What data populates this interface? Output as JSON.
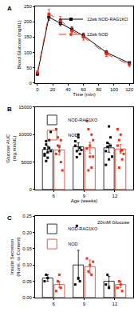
{
  "chart_data": [
    {
      "type": "line",
      "label": "A",
      "x_label": "Time (min)",
      "y_label": "Blood Glucose (mg/dL)",
      "x": [
        0,
        15,
        30,
        45,
        60,
        90,
        120
      ],
      "xlim": [
        -3,
        125
      ],
      "xticks": [
        0,
        20,
        40,
        60,
        80,
        100,
        120
      ],
      "ylim": [
        0,
        250
      ],
      "yticks": [
        0,
        50,
        100,
        150,
        200,
        250
      ],
      "grid": false,
      "legend": "upper right",
      "series": [
        {
          "name": "12wk NOD-RAG1KO",
          "color": "#000000",
          "marker": "square",
          "line_style": "solid",
          "values": [
            30,
            215,
            195,
            175,
            155,
            100,
            65
          ],
          "error": [
            5,
            10,
            8,
            8,
            8,
            6,
            5
          ]
        },
        {
          "name": "12wk NOD",
          "color": "#e8301c",
          "marker": "circle",
          "line_style": "dash",
          "values": [
            35,
            225,
            205,
            170,
            150,
            95,
            60
          ],
          "error": [
            5,
            15,
            12,
            10,
            10,
            8,
            6
          ]
        }
      ]
    },
    {
      "type": "bar",
      "label": "B",
      "x_label": "Age (weeks)",
      "y_label": "Glucose AUC (mg.min/dL)",
      "categories": [
        "6",
        "9",
        "12"
      ],
      "ylim": [
        0,
        15000
      ],
      "yticks": [
        0,
        5000,
        10000,
        15000
      ],
      "grid": false,
      "legend": "upper left",
      "series": [
        {
          "name": "NOD-RAG1KO",
          "color": "#000000",
          "marker": "square",
          "values": [
            7300,
            7800,
            7600
          ],
          "error": [
            600,
            700,
            800
          ],
          "points": [
            [
              7500,
              8200,
              6800,
              9000,
              7000,
              6200,
              8800,
              5800,
              7600,
              10500,
              6500,
              5200
            ],
            [
              8000,
              7000,
              9500,
              6500,
              7200,
              8800,
              5900,
              10000,
              7600
            ],
            [
              7000,
              8500,
              11500,
              9500,
              6000,
              4500,
              7800,
              5500,
              8000
            ]
          ]
        },
        {
          "name": "NOD",
          "color": "#e8301c",
          "marker": "square",
          "values": [
            7200,
            7600,
            7400
          ],
          "error": [
            900,
            1000,
            800
          ],
          "points": [
            [
              11000,
              9500,
              7000,
              5000,
              3500,
              6500,
              8000,
              7800,
              9000
            ],
            [
              12500,
              11000,
              6000,
              4000,
              9000,
              7500,
              3500,
              8000,
              10000,
              6000
            ],
            [
              11000,
              9000,
              7000,
              5500,
              6500,
              8000,
              4000,
              10000,
              7200
            ]
          ]
        }
      ]
    },
    {
      "type": "bar",
      "label": "C",
      "y_label": "Insulin Secretion (Norm. to Content)",
      "annotation": "20mM Glucose",
      "categories": [
        "6",
        "9",
        "12"
      ],
      "ylim": [
        0,
        0.25
      ],
      "yticks": [
        {
          "value": 0,
          "label": "0.00"
        },
        {
          "value": 0.05,
          "label": "0.05"
        },
        {
          "value": 0.1,
          "label": "0.10"
        },
        {
          "value": 0.15,
          "label": "0.15"
        },
        {
          "value": 0.2,
          "label": "0.20"
        },
        {
          "value": 0.25,
          "label": "0.25"
        }
      ],
      "grid": false,
      "legend": "upper left",
      "series": [
        {
          "name": "NOD-RAG1KO",
          "color": "#000000",
          "marker": "square",
          "values": [
            0.06,
            0.1,
            0.05
          ],
          "error": [
            0.01,
            0.045,
            0.015
          ],
          "points": [
            [
              0.05,
              0.07,
              0.06
            ],
            [
              0.04,
              0.22,
              0.06,
              0.05
            ],
            [
              0.04,
              0.07,
              0.03
            ]
          ]
        },
        {
          "name": "NOD",
          "color": "#e8301c",
          "marker": "square",
          "values": [
            0.04,
            0.095,
            0.04
          ],
          "error": [
            0.01,
            0.02,
            0.01
          ],
          "points": [
            [
              0.02,
              0.05,
              0.07,
              0.03
            ],
            [
              0.12,
              0.08,
              0.1,
              0.07,
              0.11
            ],
            [
              0.03,
              0.05,
              0.04,
              0.02
            ]
          ]
        }
      ]
    }
  ]
}
